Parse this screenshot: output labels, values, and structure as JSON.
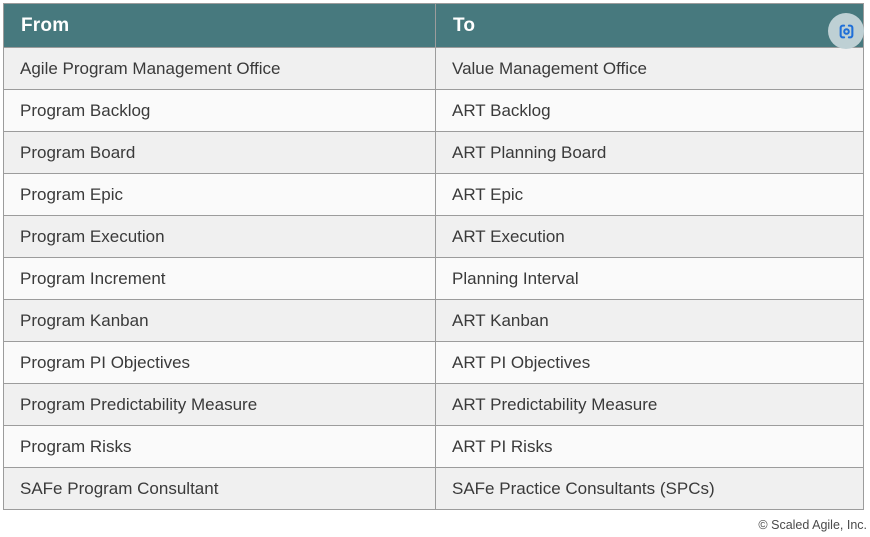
{
  "colors": {
    "header-teal": "#47797e",
    "header-divider": "#85a7ab",
    "border-gray": "#9c9c9c",
    "row-odd": "#f0f0f0",
    "row-even": "#fafafa",
    "cell-text": "#3a3a3a",
    "icon-blue": "#1f6fd8",
    "icon-circle-bg": "#bed0d4"
  },
  "table": {
    "header": {
      "from": "From",
      "to": "To"
    },
    "rows": [
      {
        "from": "Agile Program Management Office",
        "to": "Value Management Office"
      },
      {
        "from": "Program Backlog",
        "to": "ART Backlog"
      },
      {
        "from": "Program Board",
        "to": "ART Planning Board"
      },
      {
        "from": "Program Epic",
        "to": "ART Epic"
      },
      {
        "from": "Program Execution",
        "to": "ART Execution"
      },
      {
        "from": "Program Increment",
        "to": "Planning Interval"
      },
      {
        "from": "Program Kanban",
        "to": "ART Kanban"
      },
      {
        "from": "Program PI Objectives",
        "to": "ART PI Objectives"
      },
      {
        "from": "Program Predictability Measure",
        "to": "ART Predictability Measure"
      },
      {
        "from": "Program Risks",
        "to": "ART PI Risks"
      },
      {
        "from": "SAFe Program Consultant",
        "to": "SAFe Practice Consultants (SPCs)"
      }
    ]
  },
  "icons": {
    "lens": "screenshot-region-icon"
  },
  "footer": {
    "copyright": "© Scaled Agile, Inc."
  }
}
